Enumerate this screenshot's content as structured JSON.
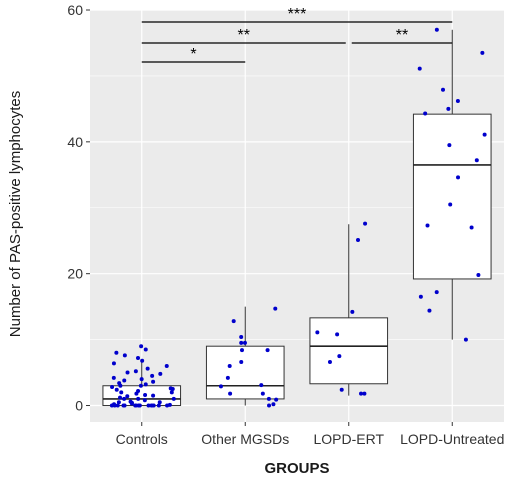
{
  "chart_data": {
    "type": "box",
    "xlabel": "GROUPS",
    "ylabel": "Number of PAS-positive lymphocytes",
    "ylim": [
      -2.5,
      60
    ],
    "yticks": [
      0,
      20,
      40,
      60
    ],
    "grid": true,
    "categories": [
      "Controls",
      "Other MGSDs",
      "LOPD-ERT",
      "LOPD-Untreated"
    ],
    "boxes": [
      {
        "name": "Controls",
        "whisker_low": 0,
        "q1": 0,
        "median": 1,
        "q3": 3,
        "whisker_high": 7
      },
      {
        "name": "Other MGSDs",
        "whisker_low": 0,
        "q1": 1,
        "median": 3,
        "q3": 9,
        "whisker_high": 15
      },
      {
        "name": "LOPD-ERT",
        "whisker_low": 1.5,
        "q1": 3.3,
        "median": 9,
        "q3": 13.3,
        "whisker_high": 27.5
      },
      {
        "name": "LOPD-Untreated",
        "whisker_low": 10,
        "q1": 19.2,
        "median": 36.5,
        "q3": 44.2,
        "whisker_high": 57
      }
    ],
    "points": [
      [
        9,
        8.5,
        8,
        7.6,
        7.2,
        6.8,
        6.4,
        6.0,
        5.6,
        5.2,
        5.0,
        4.8,
        4.5,
        4.2,
        4.0,
        3.8,
        3.6,
        3.4,
        3.2,
        3.0,
        3.0,
        2.8,
        2.6,
        2.5,
        2.4,
        2.2,
        2.0,
        2.0,
        1.8,
        1.6,
        1.5,
        1.4,
        1.2,
        1.0,
        1.0,
        1.0,
        0.8,
        0.6,
        0.5,
        0.5,
        0.4,
        0.3,
        0.2,
        0.1,
        0,
        0,
        0,
        0,
        0,
        0,
        0,
        0,
        0,
        0,
        0,
        0,
        0,
        0,
        0,
        0
      ],
      [
        14.7,
        12.8,
        10.4,
        9.5,
        9.5,
        8.4,
        8.4,
        6.6,
        6.0,
        4.2,
        3.1,
        2.9,
        1.8,
        1.8,
        1.0,
        0.9,
        0.2,
        0
      ],
      [
        27.6,
        25.1,
        14.2,
        11.1,
        10.8,
        7.5,
        6.6,
        2.4,
        1.8,
        1.8
      ],
      [
        57.0,
        53.5,
        51.1,
        47.9,
        46.2,
        45.0,
        44.3,
        41.1,
        39.5,
        37.2,
        34.6,
        30.5,
        27.3,
        27.0,
        19.8,
        17.2,
        16.5,
        14.4,
        10.0
      ]
    ],
    "significance": [
      {
        "from": "Controls",
        "to": "Other MGSDs",
        "label": "*"
      },
      {
        "from": "Controls",
        "to": "LOPD-ERT",
        "label": "**"
      },
      {
        "from": "LOPD-ERT",
        "to": "LOPD-Untreated",
        "label": "**"
      },
      {
        "from": "Controls",
        "to": "LOPD-Untreated",
        "label": "***"
      }
    ],
    "colors": {
      "panel": "#ebebeb",
      "grid": "#ffffff",
      "point": "#0000cc",
      "box_fill": "#ffffff",
      "box_line": "#333333"
    }
  }
}
